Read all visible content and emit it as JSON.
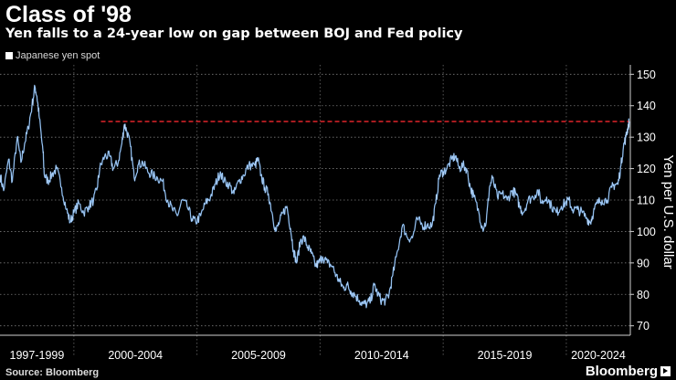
{
  "chart_data": {
    "type": "line",
    "title": "Class of '98",
    "subtitle": "Yen falls to a 24-year low on gap between BOJ and Fed policy",
    "legend": [
      "Japanese yen spot"
    ],
    "ylabel": "Yen per U.S. dollar",
    "ylim": [
      67,
      153
    ],
    "yticks": [
      70,
      80,
      90,
      100,
      110,
      120,
      130,
      140,
      150
    ],
    "xlim": [
      1997.0,
      2022.6
    ],
    "x_period_labels": [
      "1997-1999",
      "2000-2004",
      "2005-2009",
      "2010-2014",
      "2015-2019",
      "2020-2024"
    ],
    "x_separators": [
      2000.0,
      2005.0,
      2010.0,
      2015.0,
      2020.0
    ],
    "reference_line": {
      "value": 135,
      "x_start": 2001.1,
      "style": "dashed",
      "color": "#e0242b"
    },
    "line_color": "#6fa8e4",
    "series": [
      {
        "name": "Japanese yen spot",
        "points": [
          [
            1997.0,
            118
          ],
          [
            1997.15,
            113
          ],
          [
            1997.35,
            123
          ],
          [
            1997.5,
            116
          ],
          [
            1997.7,
            130
          ],
          [
            1997.85,
            122
          ],
          [
            1998.0,
            128
          ],
          [
            1998.15,
            133
          ],
          [
            1998.3,
            140
          ],
          [
            1998.42,
            146
          ],
          [
            1998.5,
            143
          ],
          [
            1998.6,
            136
          ],
          [
            1998.75,
            125
          ],
          [
            1998.8,
            118
          ],
          [
            1998.95,
            116
          ],
          [
            1999.1,
            118
          ],
          [
            1999.3,
            120
          ],
          [
            1999.5,
            114
          ],
          [
            1999.7,
            107
          ],
          [
            1999.85,
            103
          ],
          [
            2000.0,
            106
          ],
          [
            2000.2,
            109
          ],
          [
            2000.4,
            106
          ],
          [
            2000.6,
            108
          ],
          [
            2000.8,
            110
          ],
          [
            2000.95,
            114
          ],
          [
            2001.05,
            120
          ],
          [
            2001.25,
            124
          ],
          [
            2001.45,
            124
          ],
          [
            2001.6,
            120
          ],
          [
            2001.8,
            122
          ],
          [
            2001.95,
            128
          ],
          [
            2002.05,
            134
          ],
          [
            2002.15,
            132
          ],
          [
            2002.3,
            127
          ],
          [
            2002.45,
            117
          ],
          [
            2002.6,
            121
          ],
          [
            2002.8,
            122
          ],
          [
            2003.0,
            119
          ],
          [
            2003.2,
            118
          ],
          [
            2003.4,
            117
          ],
          [
            2003.6,
            116
          ],
          [
            2003.8,
            110
          ],
          [
            2004.0,
            107
          ],
          [
            2004.2,
            105
          ],
          [
            2004.4,
            110
          ],
          [
            2004.6,
            108
          ],
          [
            2004.8,
            104
          ],
          [
            2004.95,
            103
          ],
          [
            2005.15,
            105
          ],
          [
            2005.35,
            109
          ],
          [
            2005.55,
            111
          ],
          [
            2005.75,
            115
          ],
          [
            2005.95,
            119
          ],
          [
            2006.1,
            116
          ],
          [
            2006.3,
            115
          ],
          [
            2006.5,
            112
          ],
          [
            2006.7,
            116
          ],
          [
            2006.9,
            118
          ],
          [
            2007.1,
            121
          ],
          [
            2007.35,
            121
          ],
          [
            2007.48,
            123
          ],
          [
            2007.6,
            118
          ],
          [
            2007.75,
            114
          ],
          [
            2007.9,
            112
          ],
          [
            2008.05,
            106
          ],
          [
            2008.2,
            100
          ],
          [
            2008.35,
            103
          ],
          [
            2008.5,
            106
          ],
          [
            2008.65,
            108
          ],
          [
            2008.8,
            101
          ],
          [
            2008.92,
            94
          ],
          [
            2009.05,
            90
          ],
          [
            2009.2,
            97
          ],
          [
            2009.35,
            98
          ],
          [
            2009.5,
            95
          ],
          [
            2009.65,
            93
          ],
          [
            2009.82,
            89
          ],
          [
            2009.95,
            90
          ],
          [
            2010.1,
            92
          ],
          [
            2010.3,
            90
          ],
          [
            2010.5,
            89
          ],
          [
            2010.65,
            86
          ],
          [
            2010.8,
            84
          ],
          [
            2010.95,
            82
          ],
          [
            2011.1,
            83
          ],
          [
            2011.25,
            81
          ],
          [
            2011.4,
            80
          ],
          [
            2011.6,
            78
          ],
          [
            2011.75,
            77
          ],
          [
            2011.9,
            77
          ],
          [
            2012.05,
            78
          ],
          [
            2012.2,
            83
          ],
          [
            2012.35,
            80
          ],
          [
            2012.5,
            78
          ],
          [
            2012.65,
            78
          ],
          [
            2012.8,
            80
          ],
          [
            2012.95,
            86
          ],
          [
            2013.15,
            94
          ],
          [
            2013.35,
            102
          ],
          [
            2013.55,
            98
          ],
          [
            2013.75,
            98
          ],
          [
            2013.95,
            104
          ],
          [
            2014.15,
            102
          ],
          [
            2014.35,
            102
          ],
          [
            2014.55,
            102
          ],
          [
            2014.7,
            109
          ],
          [
            2014.85,
            118
          ],
          [
            2015.0,
            119
          ],
          [
            2015.15,
            120
          ],
          [
            2015.35,
            123
          ],
          [
            2015.5,
            124
          ],
          [
            2015.65,
            120
          ],
          [
            2015.8,
            121
          ],
          [
            2015.95,
            120
          ],
          [
            2016.1,
            114
          ],
          [
            2016.25,
            111
          ],
          [
            2016.45,
            106
          ],
          [
            2016.6,
            101
          ],
          [
            2016.75,
            103
          ],
          [
            2016.88,
            114
          ],
          [
            2017.0,
            117
          ],
          [
            2017.2,
            111
          ],
          [
            2017.4,
            112
          ],
          [
            2017.6,
            110
          ],
          [
            2017.8,
            113
          ],
          [
            2017.95,
            112
          ],
          [
            2018.1,
            108
          ],
          [
            2018.25,
            106
          ],
          [
            2018.45,
            110
          ],
          [
            2018.65,
            111
          ],
          [
            2018.85,
            113
          ],
          [
            2019.0,
            109
          ],
          [
            2019.2,
            111
          ],
          [
            2019.4,
            108
          ],
          [
            2019.6,
            106
          ],
          [
            2019.8,
            108
          ],
          [
            2019.95,
            109
          ],
          [
            2020.1,
            110
          ],
          [
            2020.25,
            107
          ],
          [
            2020.45,
            107
          ],
          [
            2020.65,
            106
          ],
          [
            2020.85,
            104
          ],
          [
            2020.98,
            103
          ],
          [
            2021.1,
            106
          ],
          [
            2021.25,
            109
          ],
          [
            2021.45,
            110
          ],
          [
            2021.65,
            110
          ],
          [
            2021.85,
            114
          ],
          [
            2021.98,
            115
          ],
          [
            2022.1,
            115
          ],
          [
            2022.22,
            121
          ],
          [
            2022.32,
            127
          ],
          [
            2022.42,
            130
          ],
          [
            2022.5,
            133
          ],
          [
            2022.55,
            135
          ]
        ]
      }
    ]
  },
  "footer": {
    "source": "Source: Bloomberg",
    "brand": "Bloomberg"
  }
}
